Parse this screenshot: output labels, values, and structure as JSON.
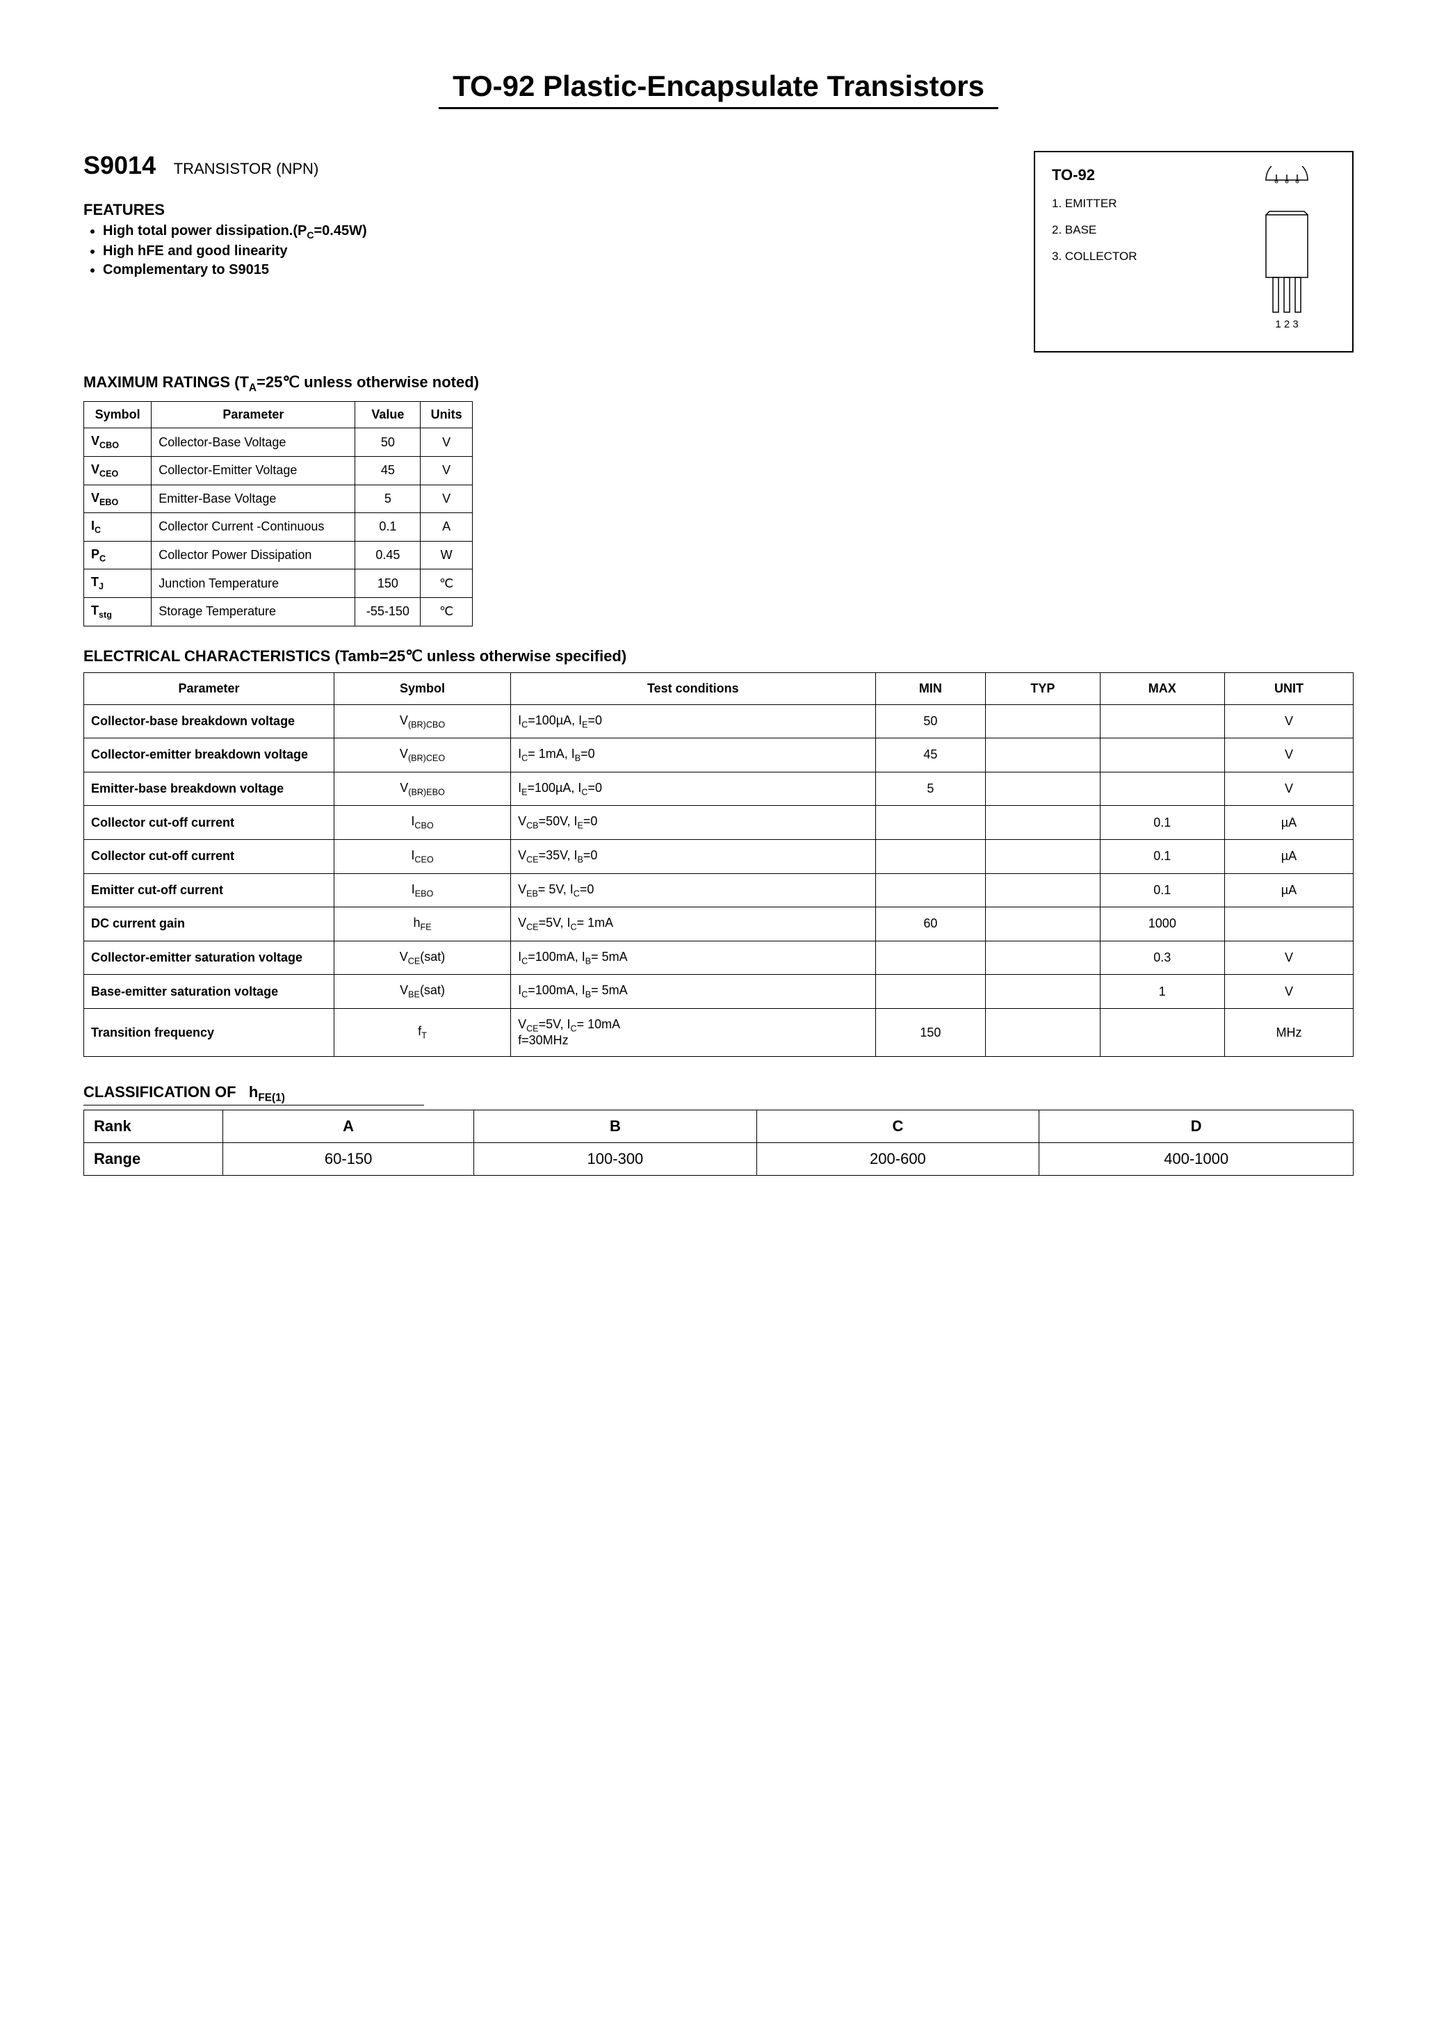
{
  "title": "TO-92 Plastic-Encapsulate Transistors",
  "part": {
    "number": "S9014",
    "type": "TRANSISTOR (NPN)"
  },
  "features": {
    "heading": "FEATURES",
    "items": [
      "High total power dissipation.(P_C=0.45W)",
      "High hFE and good linearity",
      "Complementary to S9015"
    ]
  },
  "package": {
    "title": "TO-92",
    "pins": [
      "1. EMITTER",
      "2. BASE",
      "3. COLLECTOR"
    ],
    "pin_labels": "1  2  3"
  },
  "ratings": {
    "heading": "MAXIMUM RATINGS (T_A=25℃ unless otherwise noted)",
    "headers": [
      "Symbol",
      "Parameter",
      "Value",
      "Units"
    ],
    "rows": [
      {
        "sym": "V_CBO",
        "param": "Collector-Base Voltage",
        "val": "50",
        "unit": "V"
      },
      {
        "sym": "V_CEO",
        "param": "Collector-Emitter Voltage",
        "val": "45",
        "unit": "V"
      },
      {
        "sym": "V_EBO",
        "param": "Emitter-Base Voltage",
        "val": "5",
        "unit": "V"
      },
      {
        "sym": "I_C",
        "param": "Collector Current -Continuous",
        "val": "0.1",
        "unit": "A"
      },
      {
        "sym": "P_C",
        "param": "Collector Power Dissipation",
        "val": "0.45",
        "unit": "W"
      },
      {
        "sym": "T_J",
        "param": "Junction Temperature",
        "val": "150",
        "unit": "℃"
      },
      {
        "sym": "T_stg",
        "param": "Storage Temperature",
        "val": "-55-150",
        "unit": "℃"
      }
    ]
  },
  "electrical": {
    "heading": "ELECTRICAL CHARACTERISTICS (Tamb=25℃ unless otherwise specified)",
    "headers": [
      "Parameter",
      "Symbol",
      "Test    conditions",
      "MIN",
      "TYP",
      "MAX",
      "UNIT"
    ],
    "rows": [
      {
        "param": "Collector-base breakdown voltage",
        "sym": "V_(BR)CBO",
        "cond": "I_C=100µA, I_E=0",
        "min": "50",
        "typ": "",
        "max": "",
        "unit": "V"
      },
      {
        "param": "Collector-emitter breakdown voltage",
        "sym": "V_(BR)CEO",
        "cond": "I_C= 1mA, I_B=0",
        "min": "45",
        "typ": "",
        "max": "",
        "unit": "V"
      },
      {
        "param": "Emitter-base breakdown voltage",
        "sym": "V_(BR)EBO",
        "cond": "I_E=100µA, I_C=0",
        "min": "5",
        "typ": "",
        "max": "",
        "unit": "V"
      },
      {
        "param": "Collector cut-off current",
        "sym": "I_CBO",
        "cond": "V_CB=50V, I_E=0",
        "min": "",
        "typ": "",
        "max": "0.1",
        "unit": "µA"
      },
      {
        "param": "Collector cut-off current",
        "sym": "I_CEO",
        "cond": "V_CE=35V, I_B=0",
        "min": "",
        "typ": "",
        "max": "0.1",
        "unit": "µA"
      },
      {
        "param": "Emitter cut-off current",
        "sym": "I_EBO",
        "cond": "V_EB= 5V, I_C=0",
        "min": "",
        "typ": "",
        "max": "0.1",
        "unit": "µA"
      },
      {
        "param": "DC current gain",
        "sym": "h_FE",
        "cond": "V_CE=5V, I_C= 1mA",
        "min": "60",
        "typ": "",
        "max": "1000",
        "unit": ""
      },
      {
        "param": "Collector-emitter saturation voltage",
        "sym": "V_CE(sat)",
        "cond": "I_C=100mA, I_B= 5mA",
        "min": "",
        "typ": "",
        "max": "0.3",
        "unit": "V"
      },
      {
        "param": "Base-emitter saturation voltage",
        "sym": "V_BE(sat)",
        "cond": "I_C=100mA, I_B= 5mA",
        "min": "",
        "typ": "",
        "max": "1",
        "unit": "V"
      },
      {
        "param": "Transition frequency",
        "sym": "f_T",
        "cond": "V_CE=5V, I_C= 10mA\nf=30MHz",
        "min": "150",
        "typ": "",
        "max": "",
        "unit": "MHz"
      }
    ]
  },
  "classification": {
    "heading": "CLASSIFICATION OF   h_FE(1)",
    "row1": [
      "Rank",
      "A",
      "B",
      "C",
      "D"
    ],
    "row2": [
      "Range",
      "60-150",
      "100-300",
      "200-600",
      "400-1000"
    ]
  },
  "colors": {
    "text": "#000000",
    "background": "#ffffff",
    "border": "#000000"
  }
}
